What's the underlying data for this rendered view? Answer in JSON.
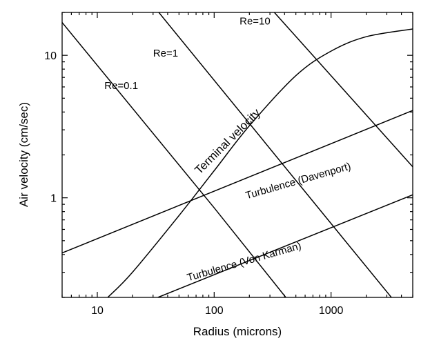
{
  "chart_data": {
    "type": "line",
    "title": "",
    "xlabel": "Radius (microns)",
    "ylabel": "Air velocity (cm/sec)",
    "x_scale": "log",
    "y_scale": "log",
    "xlim": [
      5,
      5000
    ],
    "ylim": [
      0.2,
      20
    ],
    "x_ticks": [
      10,
      100,
      1000
    ],
    "x_tick_labels": [
      "10",
      "100",
      "1000"
    ],
    "y_ticks": [
      1,
      10
    ],
    "y_tick_labels": [
      "1",
      "10"
    ],
    "grid": false,
    "legend": "none",
    "series": [
      {
        "name": "Re=0.1",
        "x": [
          5,
          100,
          410
        ],
        "y": [
          17,
          0.85,
          0.2
        ]
      },
      {
        "name": "Re=1",
        "x": [
          32,
          1000,
          4100
        ],
        "y": [
          21,
          0.66,
          0.16
        ]
      },
      {
        "name": "Re=10",
        "x": [
          310,
          5000
        ],
        "y": [
          21,
          1.65
        ]
      },
      {
        "name": "Terminal velocity",
        "x": [
          12.3,
          20,
          50,
          100,
          200,
          500,
          1000,
          2000,
          5000
        ],
        "y": [
          0.2,
          0.3,
          0.75,
          1.55,
          3.2,
          7.2,
          10.7,
          13.5,
          15.3
        ]
      },
      {
        "name": "Turbulence (Davenport)",
        "x": [
          5,
          5000
        ],
        "y": [
          0.41,
          4.1
        ]
      },
      {
        "name": "Turbulence (Von Karman)",
        "x": [
          33,
          5000
        ],
        "y": [
          0.2,
          1.05
        ]
      }
    ],
    "annotations": [
      {
        "text": "Re=0.1",
        "x": 11.5,
        "y": 5.8,
        "rotation": 0
      },
      {
        "text": "Re=1",
        "x": 30,
        "y": 9.8,
        "rotation": 0
      },
      {
        "text": "Re=10",
        "x": 165,
        "y": 16.5,
        "rotation": 0
      },
      {
        "text": "Terminal velocity",
        "x": 75,
        "y": 1.45,
        "rotation": -45
      },
      {
        "text": "Turbulence (Davenport)",
        "x": 190,
        "y": 0.98,
        "rotation": -16
      },
      {
        "text": "Turbulence (Von Karman)",
        "x": 60,
        "y": 0.26,
        "rotation": -16
      }
    ]
  }
}
